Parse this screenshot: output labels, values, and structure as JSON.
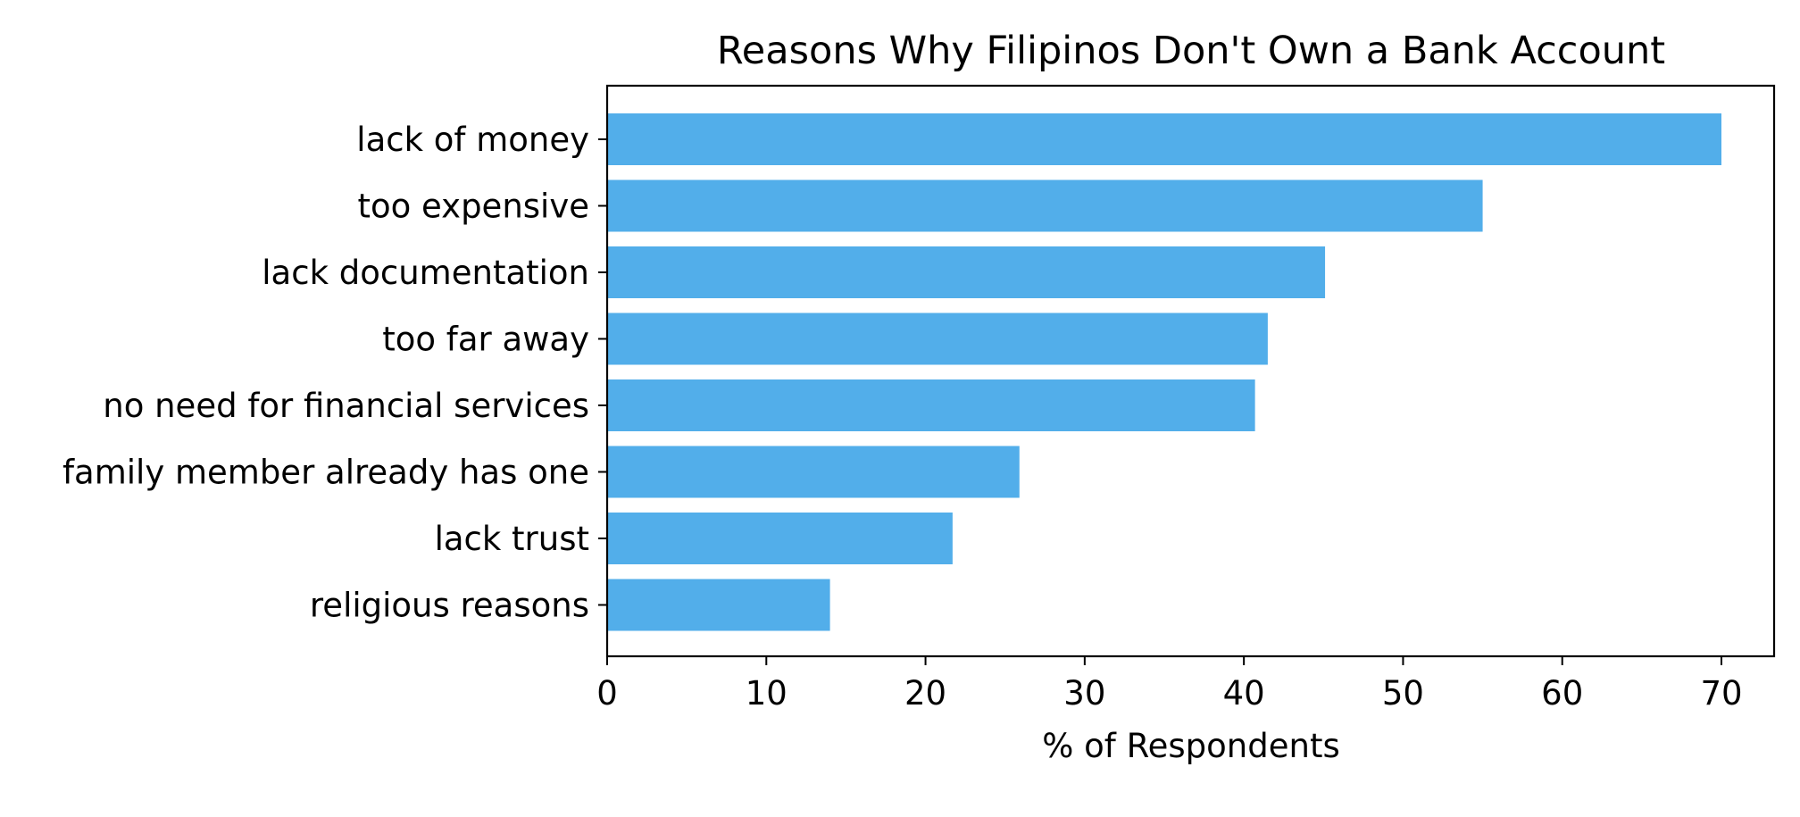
{
  "chart_data": {
    "type": "bar",
    "orientation": "horizontal",
    "title": "Reasons Why Filipinos Don't Own a Bank Account",
    "xlabel": "% of Respondents",
    "ylabel": "",
    "categories": [
      "lack of money",
      "too expensive",
      "lack documentation",
      "too far away",
      "no need for financial services",
      "family member already has one",
      "lack trust",
      "religious reasons"
    ],
    "values": [
      70,
      55,
      45.1,
      41.5,
      40.7,
      25.9,
      21.7,
      14
    ],
    "xlim": [
      0,
      73.5
    ],
    "xticks": [
      0,
      10,
      20,
      30,
      40,
      50,
      60,
      70
    ],
    "bar_color": "#52aeea",
    "grid": false,
    "legend": "none"
  }
}
